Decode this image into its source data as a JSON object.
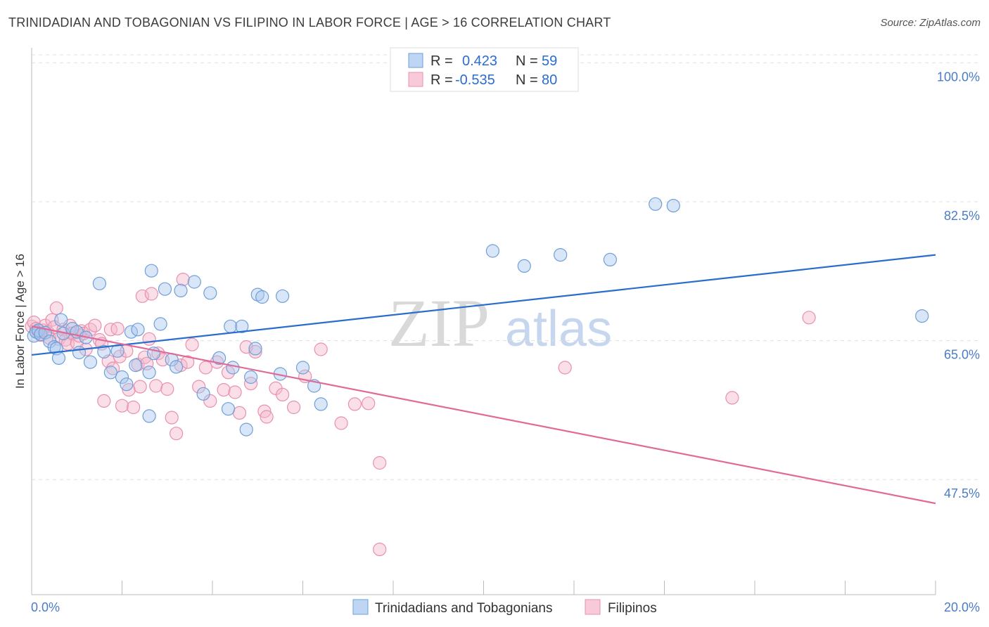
{
  "chart_data": {
    "type": "scatter",
    "title": "TRINIDADIAN AND TOBAGONIAN VS FILIPINO IN LABOR FORCE | AGE > 16 CORRELATION CHART",
    "source": "Source: ZipAtlas.com",
    "ylabel": "In Labor Force | Age > 16",
    "xlim": [
      0,
      20
    ],
    "ylim": [
      33,
      101
    ],
    "x_tick_labels": [
      "0.0%",
      "20.0%"
    ],
    "y_ticks": [
      {
        "value": 100,
        "label": "100.0%"
      },
      {
        "value": 82.5,
        "label": "82.5%"
      },
      {
        "value": 65,
        "label": "65.0%"
      },
      {
        "value": 47.5,
        "label": "47.5%"
      }
    ],
    "watermark": {
      "zip": "ZIP",
      "atlas": "atlas"
    },
    "legend": [
      {
        "r_label": "R =",
        "r_value": "0.423",
        "n_label": "N =",
        "n_value": "59"
      },
      {
        "r_label": "R =",
        "r_value": "-0.535",
        "n_label": "N =",
        "n_value": "80"
      }
    ],
    "colors": {
      "blue_fill": "#a8c8f0",
      "blue_stroke": "#6f9fd8",
      "blue_line": "#2a6dcc",
      "pink_fill": "#f5b8cc",
      "pink_stroke": "#e890ad",
      "pink_line": "#e06a98",
      "value_text": "#2a6dcc",
      "label_text": "#333333"
    },
    "series": [
      {
        "name": "Trinidadians and Tobagonians",
        "trend": {
          "x": [
            0,
            20
          ],
          "y": [
            63.2,
            75.8
          ]
        },
        "points": [
          [
            0.05,
            65.6
          ],
          [
            0.1,
            66.1
          ],
          [
            0.15,
            66.3
          ],
          [
            0.2,
            65.8
          ],
          [
            0.3,
            66.0
          ],
          [
            0.4,
            64.9
          ],
          [
            0.5,
            64.2
          ],
          [
            0.55,
            64.0
          ],
          [
            0.6,
            62.8
          ],
          [
            0.65,
            67.6
          ],
          [
            0.7,
            65.9
          ],
          [
            0.9,
            66.5
          ],
          [
            1.0,
            66.1
          ],
          [
            1.05,
            63.5
          ],
          [
            1.2,
            65.4
          ],
          [
            1.3,
            62.3
          ],
          [
            1.5,
            72.2
          ],
          [
            1.6,
            63.6
          ],
          [
            1.75,
            61.0
          ],
          [
            1.9,
            63.7
          ],
          [
            2.0,
            60.4
          ],
          [
            2.1,
            59.5
          ],
          [
            2.2,
            66.1
          ],
          [
            2.3,
            61.9
          ],
          [
            2.35,
            66.4
          ],
          [
            2.6,
            61.0
          ],
          [
            2.6,
            55.5
          ],
          [
            2.65,
            73.8
          ],
          [
            2.7,
            63.4
          ],
          [
            2.85,
            67.1
          ],
          [
            2.95,
            71.5
          ],
          [
            3.1,
            62.6
          ],
          [
            3.2,
            61.7
          ],
          [
            3.3,
            71.3
          ],
          [
            3.6,
            72.4
          ],
          [
            3.8,
            58.3
          ],
          [
            3.95,
            71.0
          ],
          [
            4.15,
            62.8
          ],
          [
            4.35,
            56.4
          ],
          [
            4.4,
            66.8
          ],
          [
            4.45,
            61.6
          ],
          [
            4.65,
            66.8
          ],
          [
            4.75,
            53.8
          ],
          [
            4.85,
            60.4
          ],
          [
            4.95,
            64.0
          ],
          [
            5.0,
            70.8
          ],
          [
            5.1,
            70.5
          ],
          [
            5.5,
            60.8
          ],
          [
            5.55,
            70.6
          ],
          [
            6.0,
            61.6
          ],
          [
            6.25,
            59.3
          ],
          [
            6.4,
            57.0
          ],
          [
            10.2,
            76.3
          ],
          [
            10.9,
            74.4
          ],
          [
            11.7,
            75.8
          ],
          [
            12.8,
            75.2
          ],
          [
            13.8,
            82.2
          ],
          [
            14.2,
            82.0
          ],
          [
            19.7,
            68.1
          ]
        ]
      },
      {
        "name": "Filipinos",
        "trend": {
          "x": [
            0,
            20
          ],
          "y": [
            66.8,
            44.5
          ]
        },
        "points": [
          [
            0.0,
            66.8
          ],
          [
            0.05,
            67.3
          ],
          [
            0.1,
            66.5
          ],
          [
            0.15,
            66.0
          ],
          [
            0.2,
            65.7
          ],
          [
            0.25,
            66.3
          ],
          [
            0.3,
            66.9
          ],
          [
            0.35,
            66.1
          ],
          [
            0.4,
            65.3
          ],
          [
            0.45,
            67.6
          ],
          [
            0.5,
            66.7
          ],
          [
            0.55,
            69.1
          ],
          [
            0.6,
            65.2
          ],
          [
            0.7,
            66.4
          ],
          [
            0.75,
            65.1
          ],
          [
            0.8,
            64.6
          ],
          [
            0.85,
            66.9
          ],
          [
            0.9,
            65.9
          ],
          [
            1.0,
            64.7
          ],
          [
            1.05,
            65.6
          ],
          [
            1.1,
            66.2
          ],
          [
            1.15,
            65.9
          ],
          [
            1.2,
            63.9
          ],
          [
            1.3,
            66.4
          ],
          [
            1.4,
            66.9
          ],
          [
            1.5,
            65.1
          ],
          [
            1.55,
            64.6
          ],
          [
            1.6,
            57.4
          ],
          [
            1.7,
            62.4
          ],
          [
            1.75,
            66.4
          ],
          [
            1.8,
            61.5
          ],
          [
            1.9,
            66.5
          ],
          [
            1.95,
            63.0
          ],
          [
            2.0,
            56.8
          ],
          [
            2.1,
            63.7
          ],
          [
            2.15,
            58.8
          ],
          [
            2.25,
            56.6
          ],
          [
            2.35,
            62.0
          ],
          [
            2.4,
            59.2
          ],
          [
            2.45,
            70.6
          ],
          [
            2.5,
            62.9
          ],
          [
            2.55,
            62.1
          ],
          [
            2.6,
            65.2
          ],
          [
            2.65,
            70.9
          ],
          [
            2.75,
            59.3
          ],
          [
            2.8,
            63.4
          ],
          [
            2.9,
            62.6
          ],
          [
            3.0,
            58.9
          ],
          [
            3.1,
            55.3
          ],
          [
            3.2,
            53.3
          ],
          [
            3.3,
            61.9
          ],
          [
            3.35,
            72.7
          ],
          [
            3.45,
            62.3
          ],
          [
            3.55,
            64.5
          ],
          [
            3.7,
            59.2
          ],
          [
            3.85,
            61.6
          ],
          [
            3.95,
            57.4
          ],
          [
            4.1,
            62.3
          ],
          [
            4.25,
            58.8
          ],
          [
            4.35,
            61.0
          ],
          [
            4.5,
            58.5
          ],
          [
            4.6,
            55.9
          ],
          [
            4.75,
            64.2
          ],
          [
            4.85,
            59.6
          ],
          [
            4.95,
            63.6
          ],
          [
            5.15,
            56.1
          ],
          [
            5.2,
            55.4
          ],
          [
            5.4,
            59.0
          ],
          [
            5.55,
            58.2
          ],
          [
            5.8,
            56.6
          ],
          [
            6.05,
            60.5
          ],
          [
            6.4,
            63.9
          ],
          [
            6.85,
            54.6
          ],
          [
            7.15,
            57.0
          ],
          [
            7.45,
            57.1
          ],
          [
            7.7,
            49.6
          ],
          [
            7.7,
            38.7
          ],
          [
            11.8,
            61.6
          ],
          [
            15.5,
            57.8
          ],
          [
            17.2,
            67.9
          ]
        ]
      }
    ]
  }
}
